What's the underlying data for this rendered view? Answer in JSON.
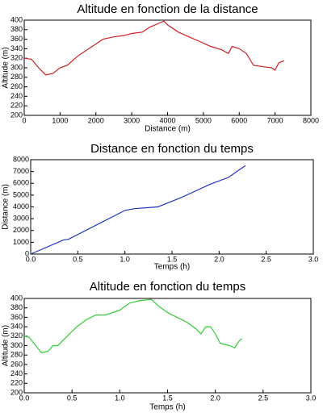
{
  "chart_data": [
    {
      "type": "line",
      "title": "Altitude en fonction de la distance",
      "xlabel": "Distance (m)",
      "ylabel": "Altitude (m)",
      "color": "#cc2222",
      "x": [
        0,
        200,
        400,
        600,
        800,
        1000,
        1200,
        1500,
        1800,
        2000,
        2200,
        2500,
        2800,
        3000,
        3300,
        3500,
        3800,
        3900,
        4000,
        4300,
        4600,
        4900,
        5200,
        5500,
        5700,
        5800,
        6000,
        6200,
        6400,
        6700,
        6900,
        7000,
        7100,
        7250
      ],
      "values": [
        320,
        318,
        300,
        285,
        288,
        300,
        305,
        325,
        340,
        350,
        360,
        365,
        368,
        372,
        375,
        385,
        395,
        398,
        390,
        375,
        365,
        355,
        345,
        338,
        330,
        345,
        340,
        330,
        305,
        302,
        300,
        295,
        310,
        315
      ],
      "xlim": [
        0,
        8000
      ],
      "xticks": [
        0,
        1000,
        2000,
        3000,
        4000,
        5000,
        6000,
        7000,
        8000
      ],
      "ylim": [
        200,
        400
      ],
      "yticks": [
        200,
        220,
        240,
        260,
        280,
        300,
        320,
        340,
        360,
        380,
        400
      ]
    },
    {
      "type": "line",
      "title": "Distance en fonction du temps",
      "xlabel": "Temps (h)",
      "ylabel": "Distance (m)",
      "color": "#2233bb",
      "x": [
        0,
        0.35,
        0.4,
        1.0,
        1.1,
        1.35,
        1.6,
        1.9,
        2.1,
        2.28
      ],
      "values": [
        0,
        1200,
        1250,
        3700,
        3850,
        4000,
        4800,
        5900,
        6500,
        7500
      ],
      "xlim": [
        0,
        3
      ],
      "xticks": [
        {
          "value": 0,
          "label": "0.0"
        },
        0.5,
        {
          "value": 1,
          "label": "1.0"
        },
        1.5,
        {
          "value": 2,
          "label": "2.0"
        },
        2.5,
        {
          "value": 3,
          "label": "3.0"
        }
      ],
      "ylim": [
        0,
        8000
      ],
      "yticks": [
        0,
        1000,
        2000,
        3000,
        4000,
        5000,
        6000,
        7000,
        8000
      ]
    },
    {
      "type": "line",
      "title": "Altitude en fonction du temps",
      "xlabel": "Temps (h)",
      "ylabel": "Altitude (m)",
      "color": "#33cc33",
      "x": [
        0,
        0.05,
        0.12,
        0.18,
        0.25,
        0.3,
        0.35,
        0.45,
        0.55,
        0.65,
        0.75,
        0.85,
        1.0,
        1.1,
        1.2,
        1.33,
        1.4,
        1.5,
        1.6,
        1.7,
        1.8,
        1.85,
        1.9,
        1.95,
        2.0,
        2.05,
        2.15,
        2.2,
        2.25,
        2.28
      ],
      "values": [
        320,
        318,
        300,
        285,
        288,
        300,
        300,
        320,
        340,
        355,
        365,
        365,
        375,
        390,
        395,
        398,
        385,
        370,
        360,
        350,
        335,
        325,
        340,
        340,
        325,
        305,
        300,
        295,
        310,
        315
      ],
      "xlim": [
        0,
        3
      ],
      "xticks": [
        {
          "value": 0,
          "label": "0.0"
        },
        0.5,
        {
          "value": 1,
          "label": "1.0"
        },
        1.5,
        {
          "value": 2,
          "label": "2.0"
        },
        2.5,
        {
          "value": 3,
          "label": "3.0"
        }
      ],
      "ylim": [
        200,
        400
      ],
      "yticks": [
        200,
        220,
        240,
        260,
        280,
        300,
        320,
        340,
        360,
        380,
        400
      ]
    }
  ]
}
